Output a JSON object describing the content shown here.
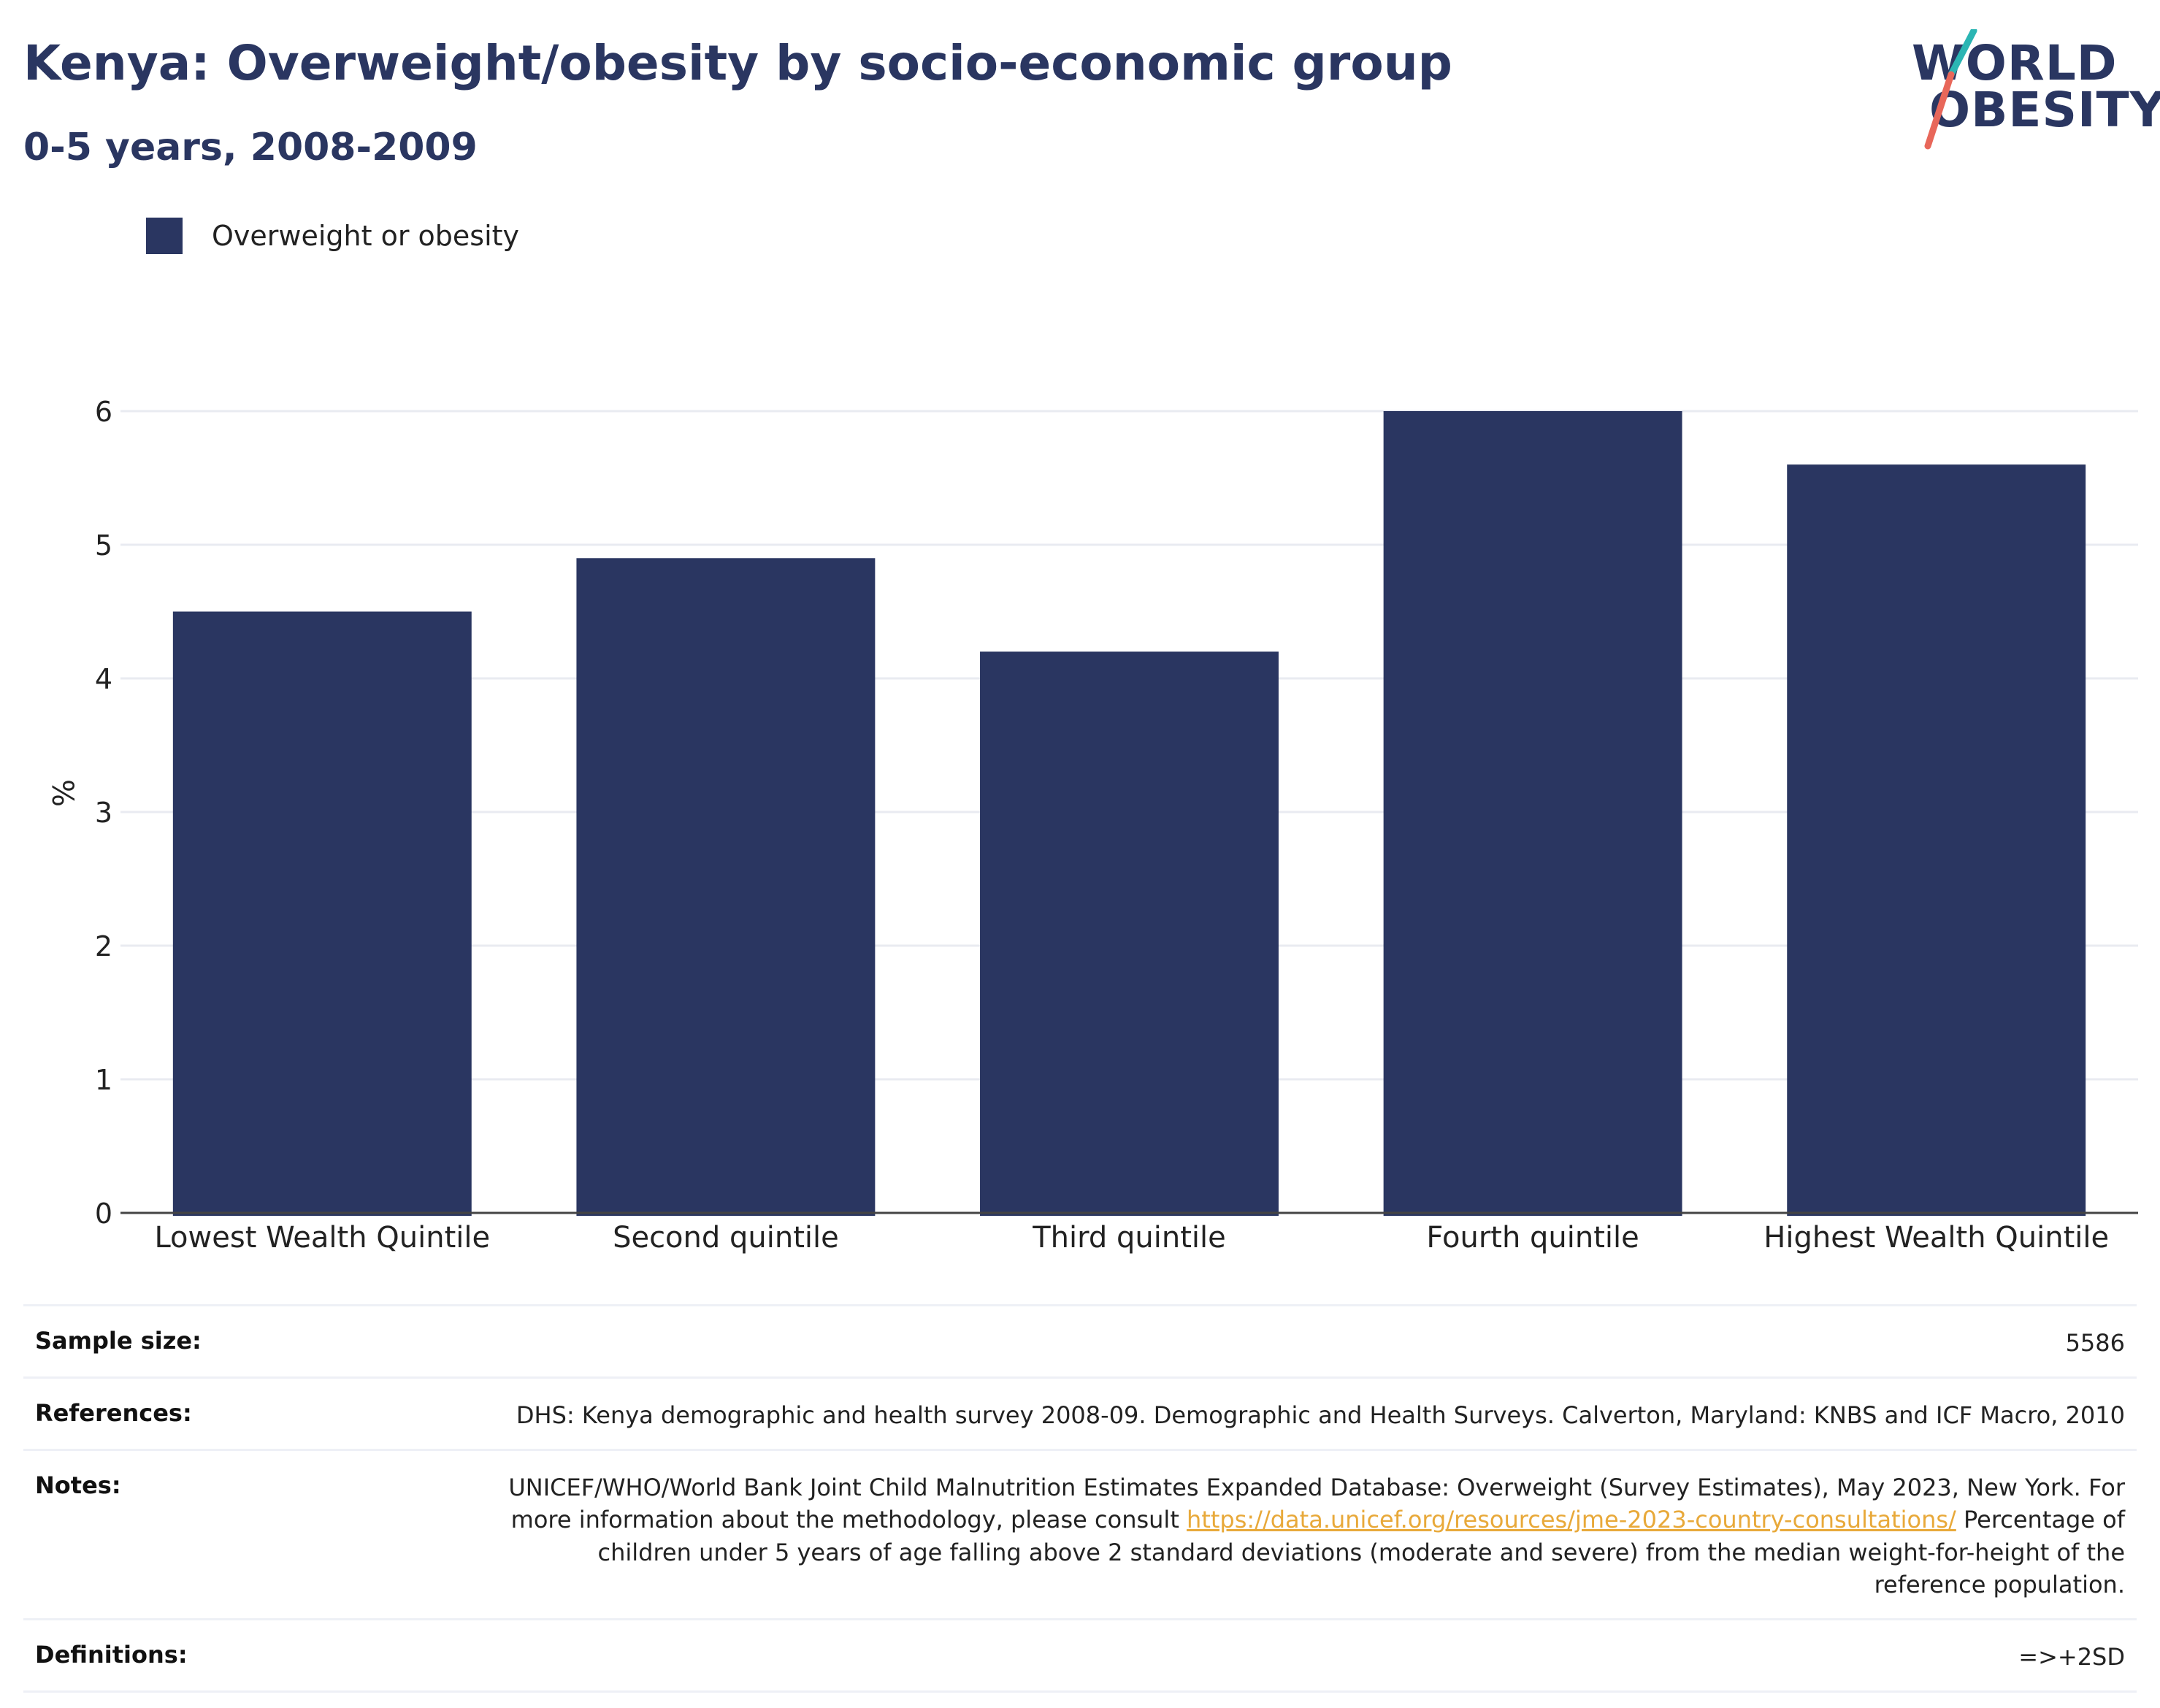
{
  "header": {
    "title": "Kenya: Overweight/obesity by socio-economic group",
    "subtitle": "0-5 years, 2008-2009"
  },
  "logo": {
    "line1": "WORLD",
    "line2": "OBESITY",
    "colors": {
      "slash_top": "#2bb5b3",
      "slash_bottom": "#e8675a",
      "text": "#2a3661"
    }
  },
  "legend": {
    "series_label": "Overweight or obesity"
  },
  "chart_data": {
    "type": "bar",
    "categories": [
      "Lowest Wealth Quintile",
      "Second quintile",
      "Third quintile",
      "Fourth quintile",
      "Highest Wealth Quintile"
    ],
    "series": [
      {
        "name": "Overweight or obesity",
        "values": [
          4.5,
          4.9,
          4.2,
          6.0,
          5.6
        ]
      }
    ],
    "title": "Kenya: Overweight/obesity by socio-economic group",
    "subtitle": "0-5 years, 2008-2009",
    "xlabel": "",
    "ylabel": "%",
    "ylim": [
      0,
      6.6
    ],
    "yticks": [
      0,
      1,
      2,
      3,
      4,
      5,
      6
    ],
    "grid": true,
    "legend": "top-left",
    "bar_color": "#2a3661"
  },
  "info": {
    "sample_size": {
      "label": "Sample size:",
      "value": "5586"
    },
    "references": {
      "label": "References:",
      "value": "DHS: Kenya demographic and health survey 2008-09. Demographic and Health Surveys. Calverton, Maryland: KNBS and ICF Macro, 2010"
    },
    "notes": {
      "label": "Notes:",
      "text_before": "UNICEF/WHO/World Bank Joint Child Malnutrition Estimates Expanded Database: Overweight (Survey Estimates), May 2023, New York. For more information about the methodology, please consult ",
      "link": "https://data.unicef.org/resources/jme-2023-country-consultations/",
      "text_after": " Percentage of children under 5 years of age falling above 2 standard deviations (moderate and severe) from the median weight-for-height of the reference population."
    },
    "definitions": {
      "label": "Definitions:",
      "value": "=>+2SD"
    }
  }
}
